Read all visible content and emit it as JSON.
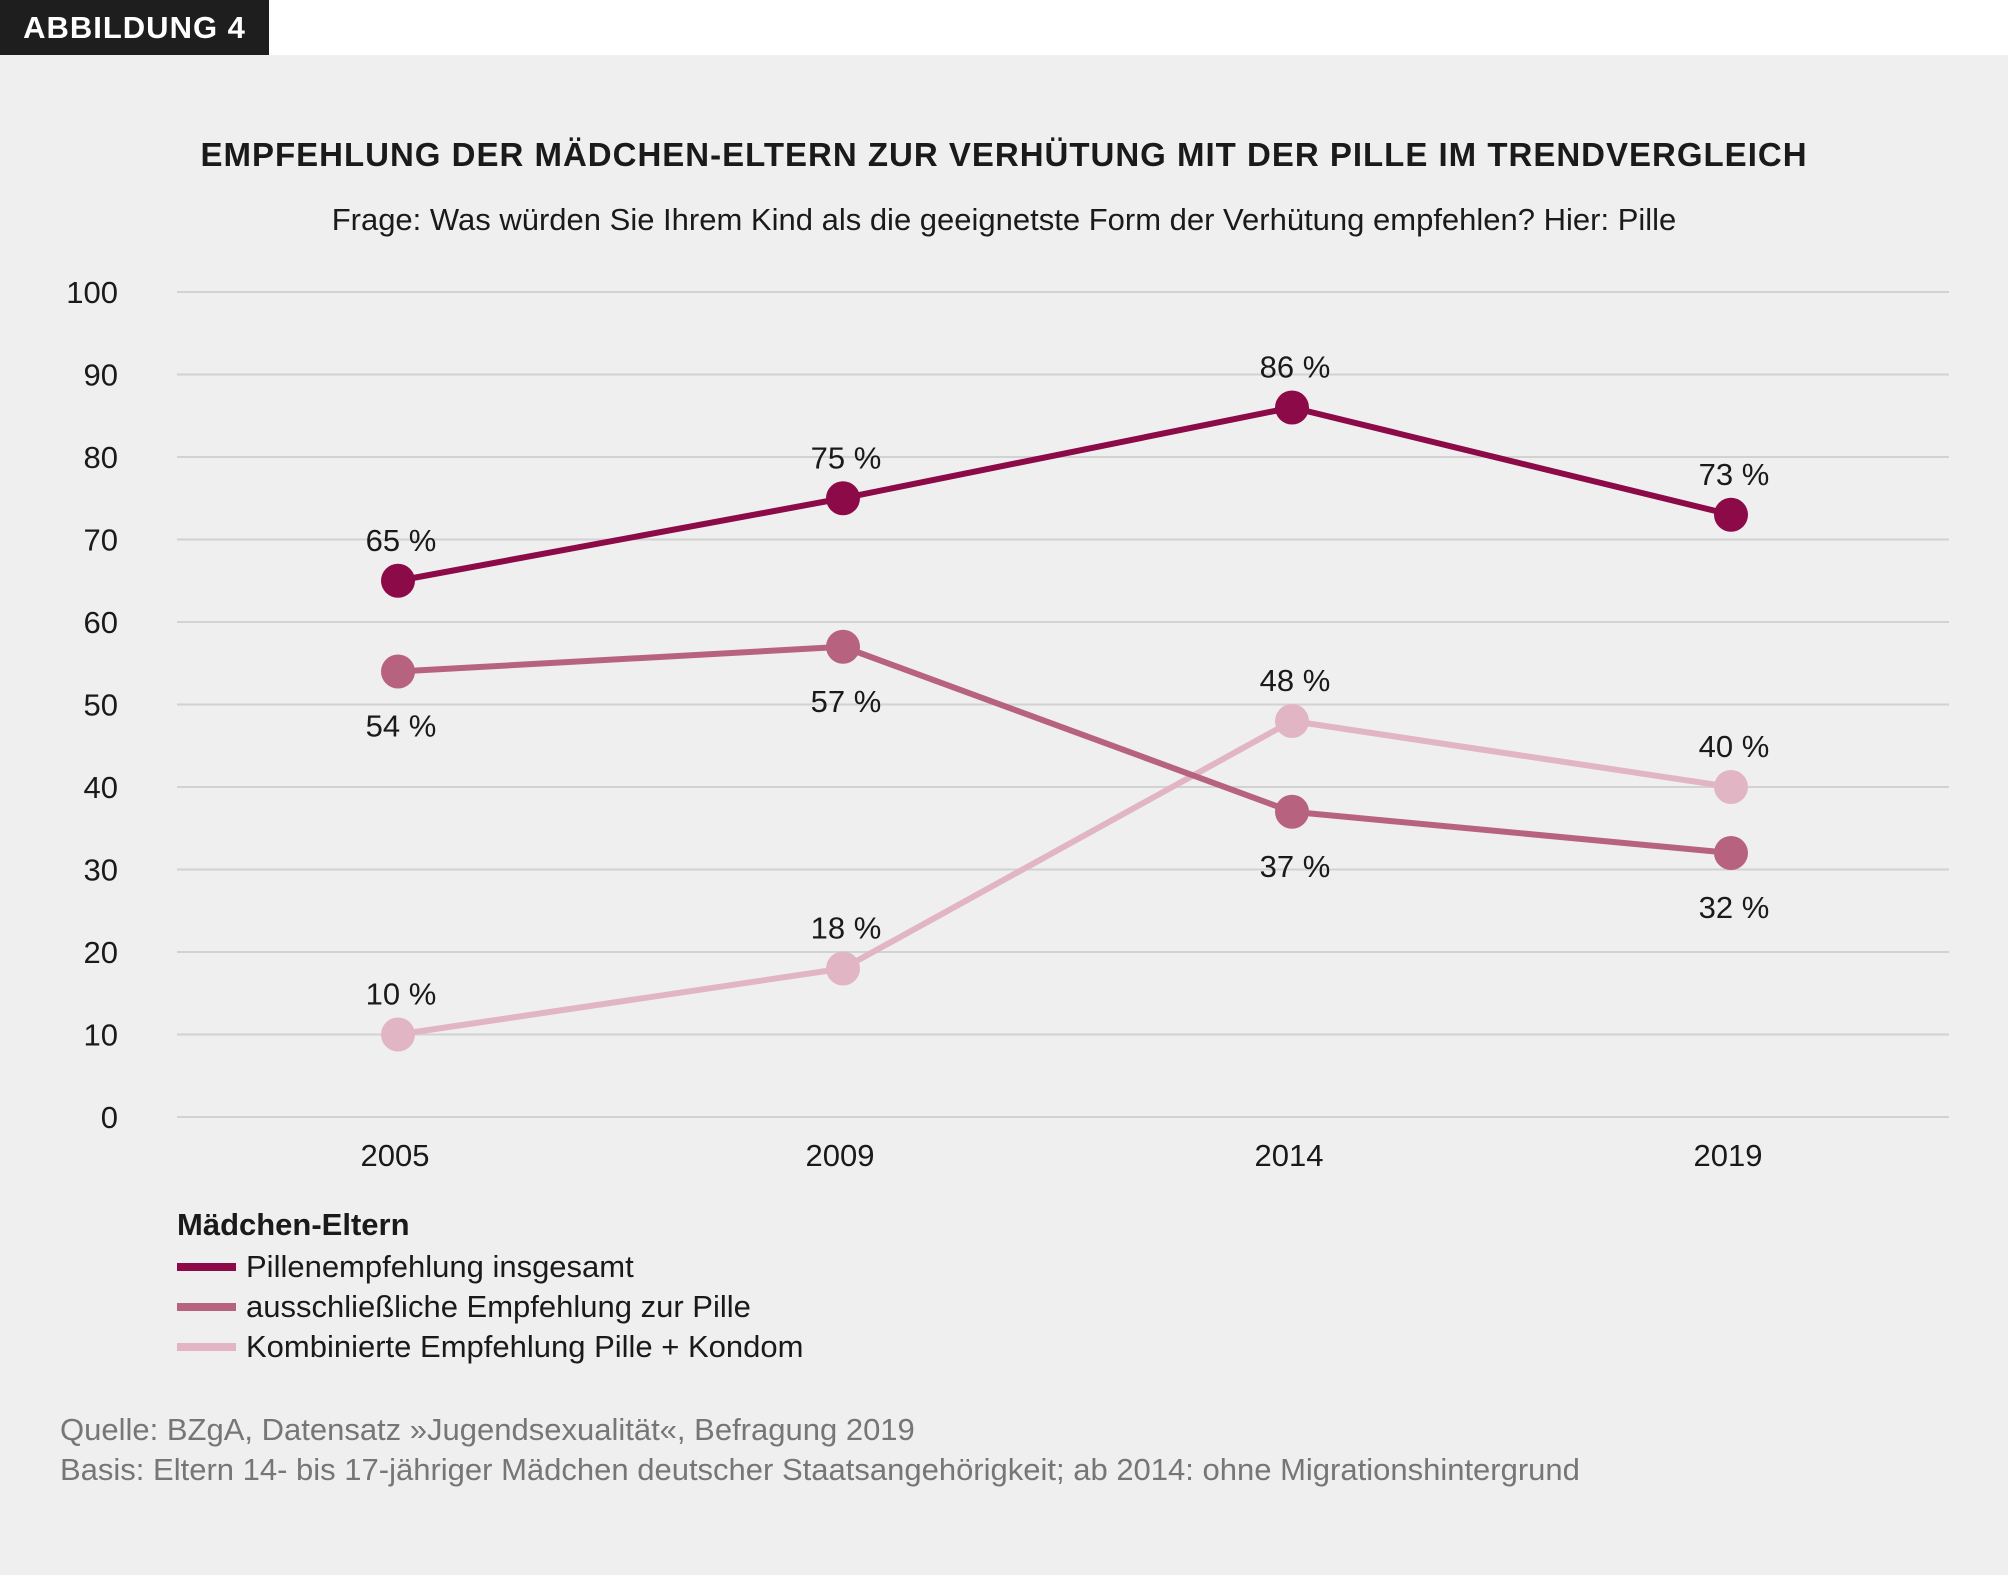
{
  "badge": "ABBILDUNG 4",
  "chart_data": {
    "type": "line",
    "title": "EMPFEHLUNG DER MÄDCHEN-ELTERN ZUR VERHÜTUNG MIT DER PILLE IM TRENDVERGLEICH",
    "subtitle": "Frage: Was würden Sie Ihrem Kind als die geeignetste Form der Verhütung empfehlen? Hier: Pille",
    "categories": [
      "2005",
      "2009",
      "2014",
      "2019"
    ],
    "ylim": [
      0,
      100
    ],
    "yticks": [
      "0",
      "10",
      "20",
      "30",
      "40",
      "50",
      "60",
      "70",
      "80",
      "90",
      "100"
    ],
    "grid": true,
    "legend_title": "Mädchen-Eltern",
    "legend_position": "bottom-left",
    "series": [
      {
        "name": "Pillenempfehlung insgesamt",
        "color": "#8c0a47",
        "values": [
          65,
          75,
          86,
          73
        ],
        "labels": [
          "65 %",
          "75 %",
          "86 %",
          "73 %"
        ]
      },
      {
        "name": "ausschließliche Empfehlung zur Pille",
        "color": "#b7637f",
        "values": [
          54,
          57,
          37,
          32
        ],
        "labels": [
          "54 %",
          "57 %",
          "37 %",
          "32 %"
        ]
      },
      {
        "name": "Kombinierte Empfehlung Pille + Kondom",
        "color": "#e2b5c4",
        "values": [
          10,
          18,
          48,
          40
        ],
        "labels": [
          "10 %",
          "18 %",
          "48 %",
          "40 %"
        ]
      }
    ]
  },
  "source": {
    "line1": "Quelle: BZgA, Datensatz »Jugendsexualität«, Befragung 2019",
    "line2": "Basis: Eltern 14- bis 17-jähriger Mädchen deutscher Staatsangehörigkeit; ab 2014: ohne Migrationshintergrund"
  }
}
